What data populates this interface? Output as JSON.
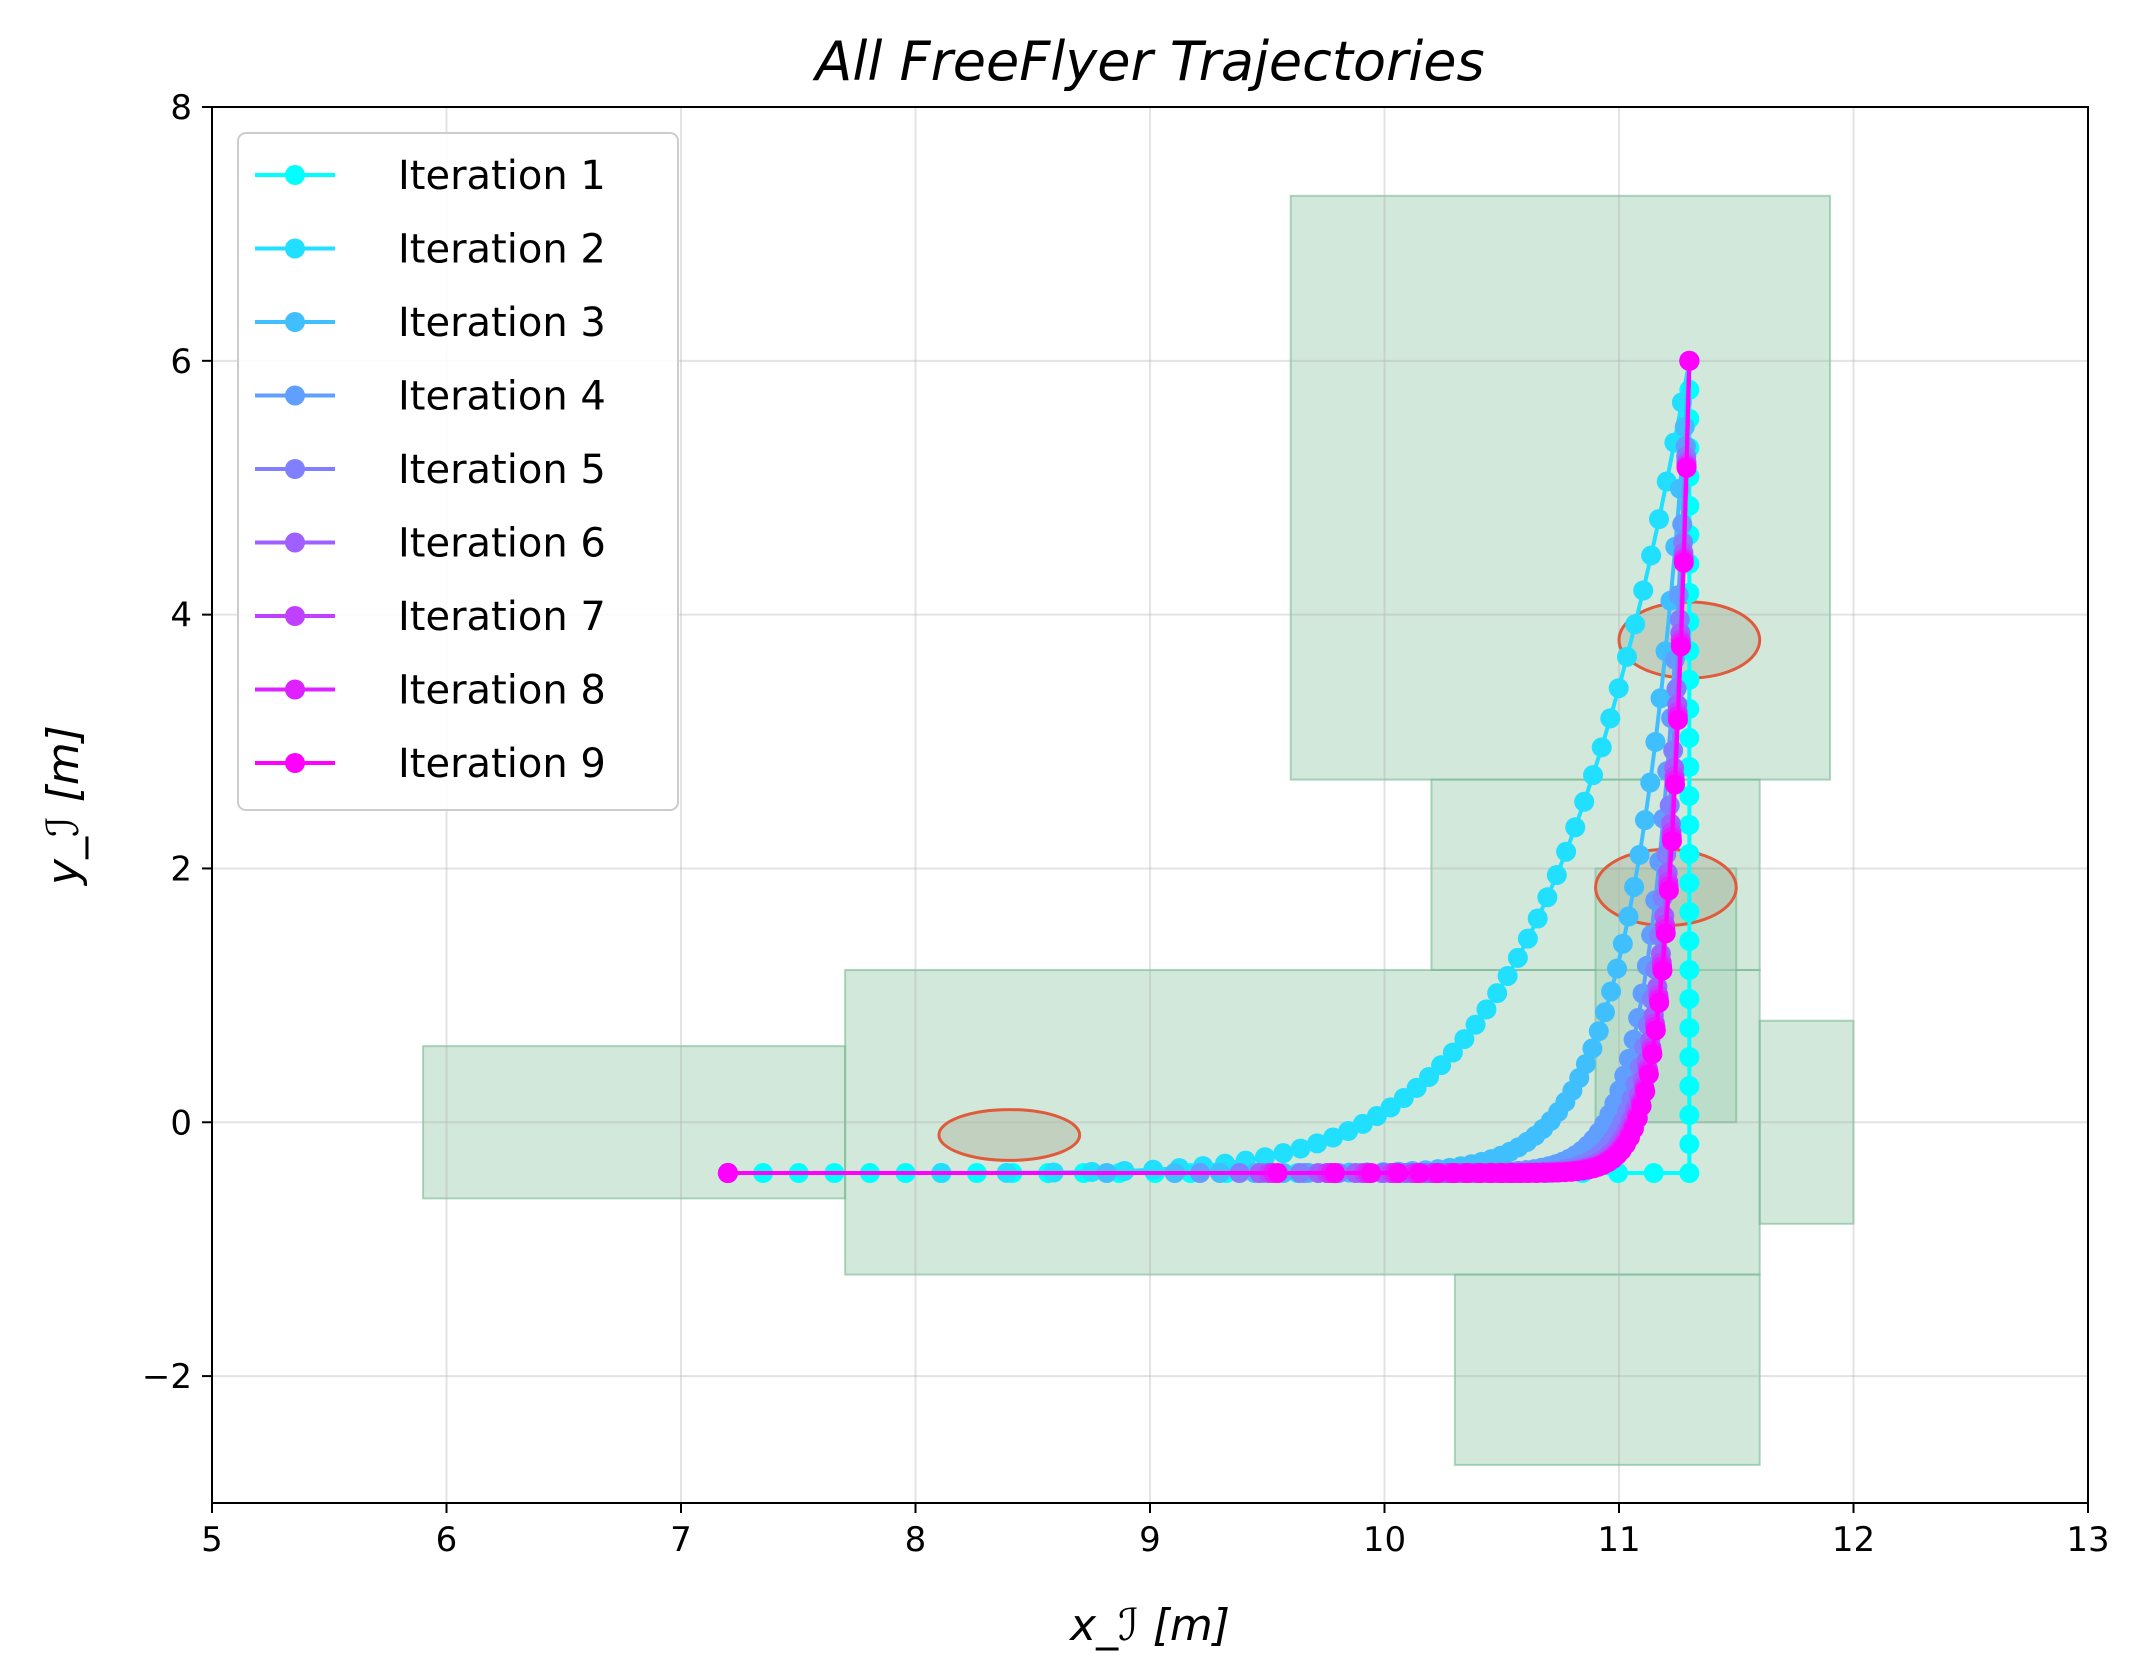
{
  "chart_data": {
    "type": "line",
    "title": "All FreeFlyer Trajectories",
    "xlabel": "x_ℐ [m]",
    "ylabel": "y_ℐ [m]",
    "xlim": [
      5,
      13
    ],
    "ylim": [
      -3,
      8
    ],
    "xticks": [
      5,
      6,
      7,
      8,
      9,
      10,
      11,
      12,
      13
    ],
    "yticks": [
      -2,
      0,
      2,
      4,
      6,
      8
    ],
    "xtick_labels": [
      "5",
      "6",
      "7",
      "8",
      "9",
      "10",
      "11",
      "12",
      "13"
    ],
    "ytick_labels": [
      "−2",
      "0",
      "2",
      "4",
      "6",
      "8"
    ],
    "grid": true,
    "legend_position": "top-left",
    "regions": [
      {
        "x": [
          5.9,
          7.7
        ],
        "y": [
          -0.6,
          0.6
        ]
      },
      {
        "x": [
          7.7,
          11.6
        ],
        "y": [
          -1.2,
          1.2
        ]
      },
      {
        "x": [
          9.6,
          11.9
        ],
        "y": [
          2.7,
          7.3
        ]
      },
      {
        "x": [
          10.2,
          11.6
        ],
        "y": [
          1.2,
          2.7
        ]
      },
      {
        "x": [
          10.3,
          11.6
        ],
        "y": [
          -2.7,
          -1.2
        ]
      },
      {
        "x": [
          11.6,
          12.0
        ],
        "y": [
          -0.8,
          0.8
        ]
      },
      {
        "x": [
          10.9,
          11.5
        ],
        "y": [
          0.0,
          2.0
        ]
      }
    ],
    "obstacles": [
      {
        "cx": 8.4,
        "cy": -0.1,
        "rx": 0.3,
        "ry": 0.2
      },
      {
        "cx": 11.2,
        "cy": 1.85,
        "rx": 0.3,
        "ry": 0.3
      },
      {
        "cx": 11.3,
        "cy": 3.8,
        "rx": 0.3,
        "ry": 0.3
      }
    ],
    "start": [
      7.2,
      -0.4
    ],
    "goal": [
      11.3,
      6.0
    ],
    "series": [
      {
        "name": "Iteration 1",
        "color": "#00ffff"
      },
      {
        "name": "Iteration 2",
        "color": "#20dfff"
      },
      {
        "name": "Iteration 3",
        "color": "#40bfff"
      },
      {
        "name": "Iteration 4",
        "color": "#609fff"
      },
      {
        "name": "Iteration 5",
        "color": "#8080ff"
      },
      {
        "name": "Iteration 6",
        "color": "#9f60ff"
      },
      {
        "name": "Iteration 7",
        "color": "#bf40ff"
      },
      {
        "name": "Iteration 8",
        "color": "#df20ff"
      },
      {
        "name": "Iteration 9",
        "color": "#ff00ff"
      }
    ]
  }
}
